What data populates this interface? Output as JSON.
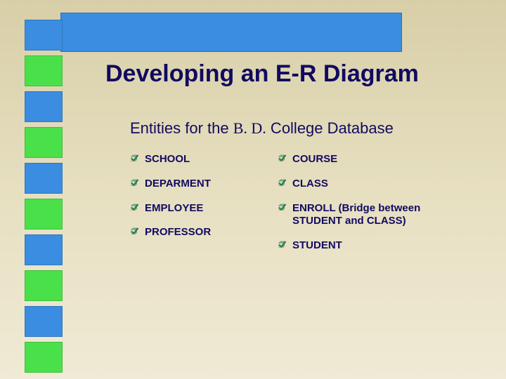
{
  "slide": {
    "title": "Developing an E-R Diagram",
    "subtitle_prefix": "Entities for the ",
    "subtitle_serif": "B. D.",
    "subtitle_suffix": " College Database",
    "left_items": [
      "SCHOOL",
      "DEPARMENT",
      "EMPLOYEE",
      "PROFESSOR"
    ],
    "right_items": [
      "COURSE",
      "CLASS",
      "ENROLL (Bridge between STUDENT and CLASS)",
      "STUDENT"
    ],
    "colors": {
      "background_top": "#d8cfa8",
      "background_bottom": "#f0ead6",
      "bar_blue": "#3a8de0",
      "box_green": "#4ae04a",
      "text": "#110a60",
      "check_fill": "#1f7a3f",
      "check_cube1": "#bfe3c8",
      "check_cube2": "#7fbf93"
    },
    "left_boxes": [
      "blue",
      "green",
      "blue",
      "green",
      "blue",
      "green",
      "blue",
      "green",
      "blue",
      "green"
    ]
  }
}
